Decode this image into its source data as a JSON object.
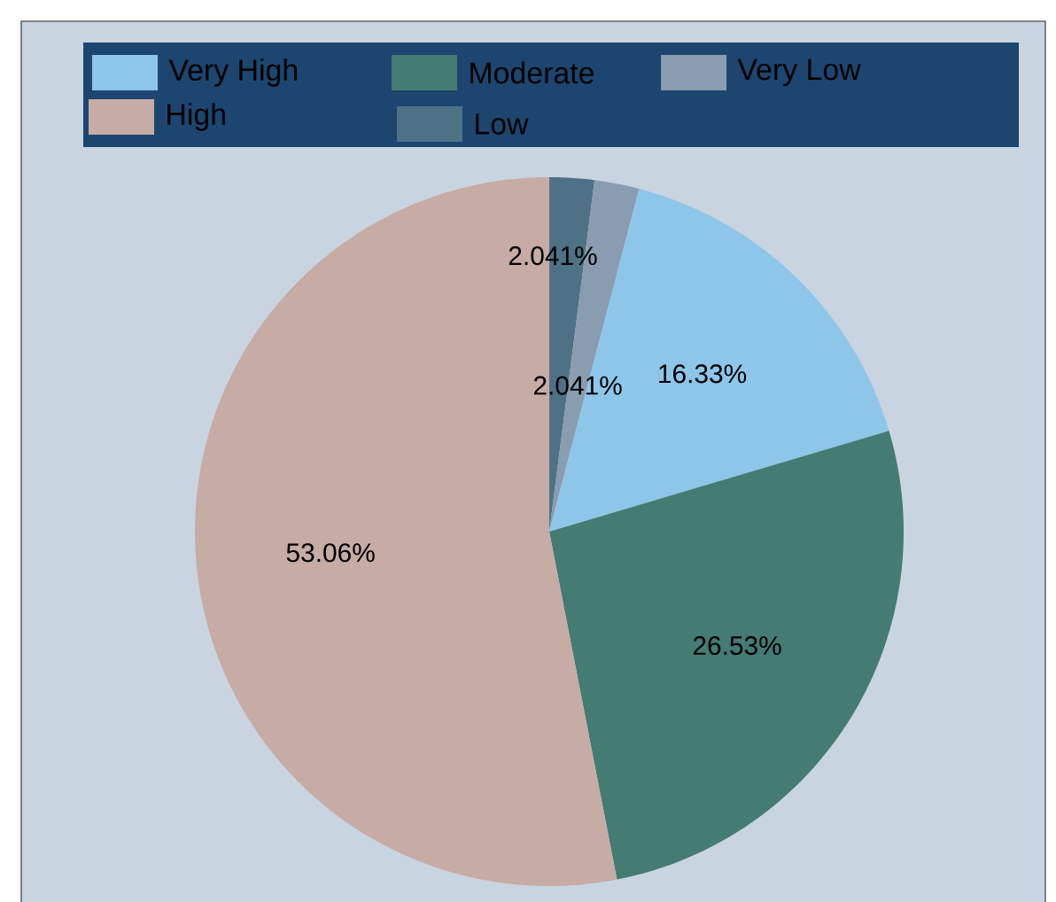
{
  "chart_data": {
    "type": "pie",
    "categories": [
      "Low",
      "Very Low",
      "Very High",
      "Moderate",
      "High"
    ],
    "values": [
      2.041,
      2.041,
      16.33,
      26.53,
      53.06
    ],
    "colors": [
      "#4f7185",
      "#8a9cb0",
      "#8ec6ea",
      "#447b72",
      "#c7aba5"
    ],
    "value_labels": [
      "2.041%",
      "2.041%",
      "16.33%",
      "26.53%",
      "53.06%"
    ],
    "legend": "top"
  }
}
